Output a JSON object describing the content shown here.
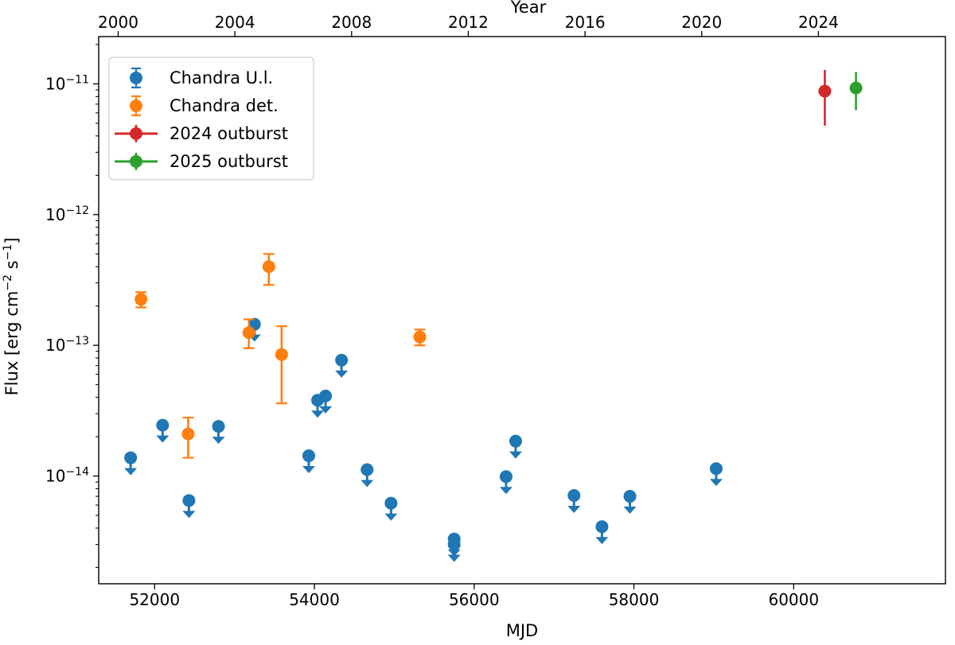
{
  "chart_data": {
    "type": "scatter",
    "xlabel": "MJD",
    "ylabel": "Flux [erg cm",
    "ylabel_exp1": "−2",
    "ylabel_mid": " s",
    "ylabel_exp2": "−1",
    "ylabel_end": "]",
    "top_xlabel": "Year",
    "xscale": "linear",
    "yscale": "log",
    "xlim": [
      51300,
      61900
    ],
    "ylim": [
      1.5e-15,
      2.3e-11
    ],
    "grid": false,
    "legend_position": "top-left",
    "x_ticks": [
      {
        "value": 52000,
        "label": "52000"
      },
      {
        "value": 54000,
        "label": "54000"
      },
      {
        "value": 56000,
        "label": "56000"
      },
      {
        "value": 58000,
        "label": "58000"
      },
      {
        "value": 60000,
        "label": "60000"
      }
    ],
    "top_ticks": [
      {
        "value": 51544,
        "label": "2000"
      },
      {
        "value": 53005,
        "label": "2004"
      },
      {
        "value": 54466,
        "label": "2008"
      },
      {
        "value": 55927,
        "label": "2012"
      },
      {
        "value": 57388,
        "label": "2016"
      },
      {
        "value": 58849,
        "label": "2020"
      },
      {
        "value": 60310,
        "label": "2024"
      }
    ],
    "y_ticks": [
      {
        "value": 1e-14,
        "base": "10",
        "exp": "−14"
      },
      {
        "value": 1e-13,
        "base": "10",
        "exp": "−13"
      },
      {
        "value": 1e-12,
        "base": "10",
        "exp": "−12"
      },
      {
        "value": 1e-11,
        "base": "10",
        "exp": "−11"
      }
    ],
    "series": [
      {
        "name": "Chandra U.l.",
        "color": "#1f77b4",
        "kind": "upper_limit",
        "points": [
          {
            "x": 51700,
            "y": 1.38e-14
          },
          {
            "x": 52100,
            "y": 2.45e-14
          },
          {
            "x": 52430,
            "y": 6.5e-15
          },
          {
            "x": 52800,
            "y": 2.4e-14
          },
          {
            "x": 53250,
            "y": 1.45e-13
          },
          {
            "x": 53930,
            "y": 1.43e-14
          },
          {
            "x": 54040,
            "y": 3.8e-14
          },
          {
            "x": 54140,
            "y": 4.1e-14
          },
          {
            "x": 54340,
            "y": 7.7e-14
          },
          {
            "x": 54660,
            "y": 1.12e-14
          },
          {
            "x": 54960,
            "y": 6.2e-15
          },
          {
            "x": 55750,
            "y": 3.3e-15
          },
          {
            "x": 55750,
            "y": 3e-15
          },
          {
            "x": 56400,
            "y": 9.9e-15
          },
          {
            "x": 56520,
            "y": 1.85e-14
          },
          {
            "x": 57250,
            "y": 7.1e-15
          },
          {
            "x": 57600,
            "y": 4.1e-15
          },
          {
            "x": 57950,
            "y": 7e-15
          },
          {
            "x": 59030,
            "y": 1.14e-14
          }
        ]
      },
      {
        "name": "Chandra det.",
        "color": "#ff7f0e",
        "kind": "errorbar_capped",
        "points": [
          {
            "x": 51830,
            "y": 2.25e-13,
            "ylo": 1.95e-13,
            "yhi": 2.55e-13
          },
          {
            "x": 52420,
            "y": 2.1e-14,
            "ylo": 1.38e-14,
            "yhi": 2.8e-14
          },
          {
            "x": 53180,
            "y": 1.25e-13,
            "ylo": 9.5e-14,
            "yhi": 1.58e-13
          },
          {
            "x": 53430,
            "y": 4e-13,
            "ylo": 2.9e-13,
            "yhi": 5e-13
          },
          {
            "x": 53590,
            "y": 8.5e-14,
            "ylo": 3.6e-14,
            "yhi": 1.4e-13
          },
          {
            "x": 55320,
            "y": 1.16e-13,
            "ylo": 1e-13,
            "yhi": 1.32e-13
          }
        ]
      },
      {
        "name": "2024 outburst",
        "color": "#d62728",
        "kind": "errorbar",
        "points": [
          {
            "x": 60390,
            "y": 8.8e-12,
            "ylo": 4.8e-12,
            "yhi": 1.28e-11
          }
        ]
      },
      {
        "name": "2025 outburst",
        "color": "#2ca02c",
        "kind": "errorbar",
        "points": [
          {
            "x": 60780,
            "y": 9.3e-12,
            "ylo": 6.3e-12,
            "yhi": 1.23e-11
          }
        ]
      }
    ]
  }
}
